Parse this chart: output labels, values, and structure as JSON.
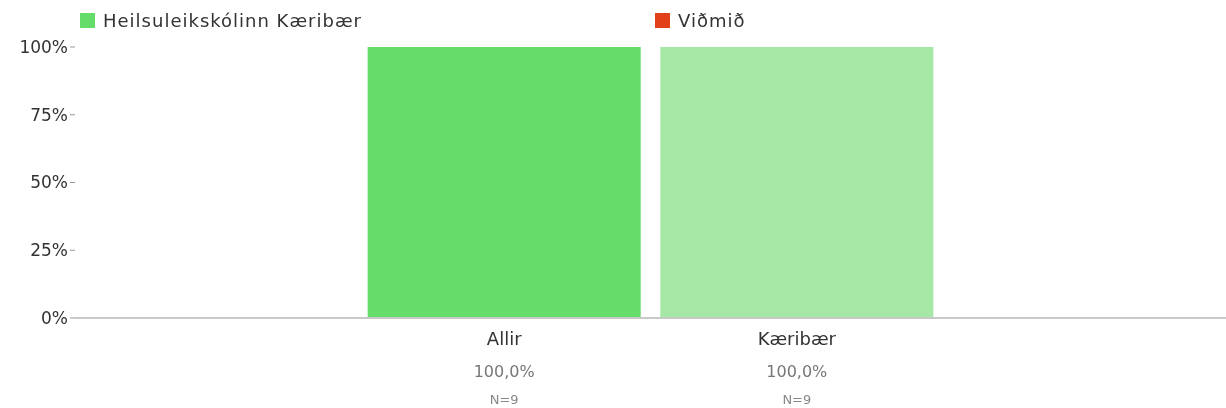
{
  "chart_data": {
    "type": "bar",
    "categories": [
      "Allir",
      "Kæribær"
    ],
    "series": [
      {
        "name": "Heilsuleikskólinn Kæribær",
        "color": "#66dd6a",
        "colors": [
          "#66dd6a",
          "#a5e8a5"
        ],
        "values": [
          100,
          100
        ],
        "value_labels": [
          "100,0%",
          "100,0%"
        ]
      },
      {
        "name": "Viðmið",
        "color": "#e2401a",
        "values": [
          null,
          null
        ]
      }
    ],
    "ylim": [
      0,
      100
    ],
    "yticks": [
      {
        "value": 0,
        "label": "0%"
      },
      {
        "value": 25,
        "label": "25%"
      },
      {
        "value": 50,
        "label": "50%"
      },
      {
        "value": 75,
        "label": "75%"
      },
      {
        "value": 100,
        "label": "100%"
      }
    ],
    "annotations": [
      "N=9",
      "N=9"
    ],
    "grid": false,
    "legend": "top"
  }
}
